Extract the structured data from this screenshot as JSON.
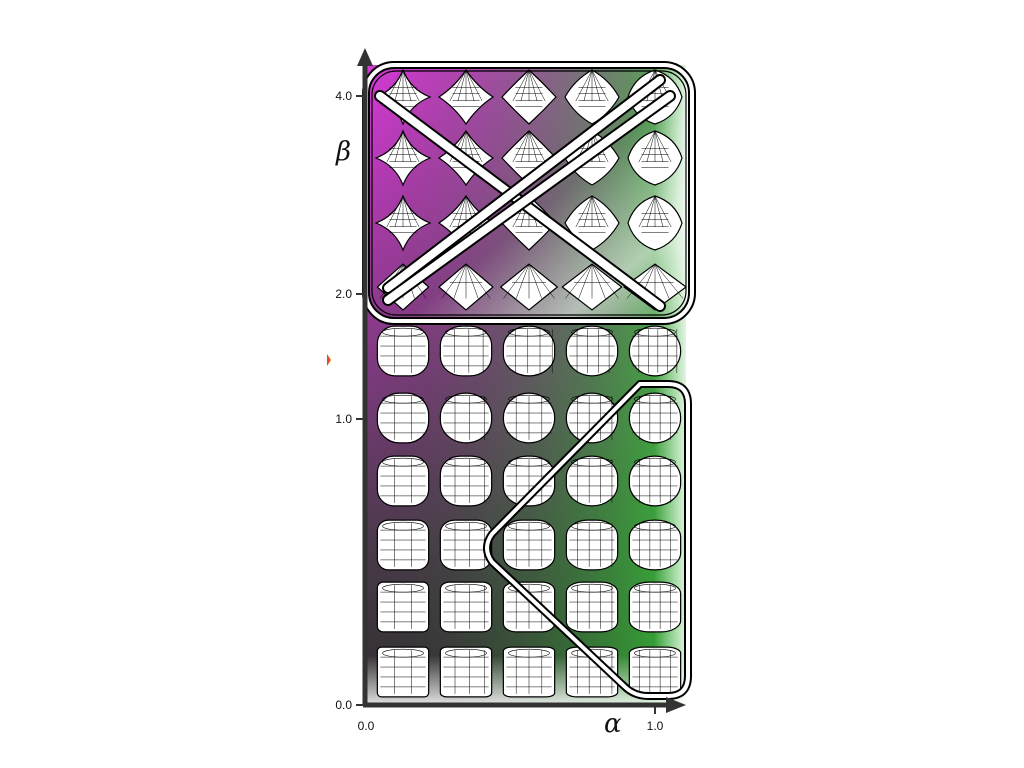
{
  "axes": {
    "x_symbol": "α",
    "y_symbol": "β",
    "x_ticks": [
      "0.0",
      "1.0"
    ],
    "y_ticks": [
      "0.0",
      "1.0",
      "2.0",
      "4.0"
    ]
  },
  "grid": {
    "columns": 5,
    "rows": 10,
    "alpha_range": [
      0.0,
      1.0
    ],
    "beta_levels": [
      "4.0",
      "",
      "",
      "2.0",
      "",
      "1.0",
      "",
      "",
      "",
      "0.0"
    ]
  },
  "colors": {
    "beta_high_low_alpha": "#d63ad6",
    "beta_low_high_alpha": "#33cc33",
    "dark_corner": "#3a3a3a",
    "outline": "#000000",
    "highlight_stroke": "#ffffff",
    "glyph_fill": "#ffffff"
  },
  "highlights": [
    {
      "name": "upper-region",
      "shape": "rounded-rectangle-with-cross"
    },
    {
      "name": "lower-right-region",
      "shape": "chevron"
    }
  ]
}
